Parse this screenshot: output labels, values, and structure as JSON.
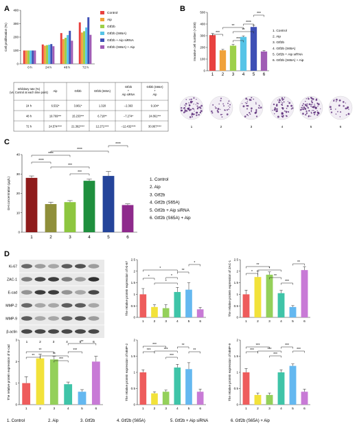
{
  "panel_letters": [
    "A",
    "B",
    "C",
    "D"
  ],
  "groups": [
    "Control",
    "Aip",
    "Gtf2b",
    "Gtf2b (S65A)",
    "Gtf2b + Aip siRNA",
    "Gtf2b (S65A) + Aip"
  ],
  "colors": [
    "#e8413f",
    "#f0a23a",
    "#9dd04a",
    "#56c4e7",
    "#3e4fb5",
    "#a05cb5"
  ],
  "panelA": {
    "ylabel": "Cell proliferation (%)",
    "x_cats": [
      "0 h",
      "24 h",
      "48 h",
      "72 h"
    ],
    "table": {
      "header": [
        "Inhibitory rate (%)",
        "Aip",
        "Gtf2b",
        "Gtf2b (S65A)",
        "Gtf2b + Aip siRNA",
        "Gtf2b (S65A) + Aip"
      ],
      "header_sub": "(vs. Control at each time point)",
      "rows": [
        [
          "24 h",
          "6.532*",
          "3.961*",
          "1.320",
          "−2.363",
          "9.104*"
        ],
        [
          "48 h",
          "19.769***",
          "15.233***",
          "6.718**",
          "−7.274*",
          "24.861***"
        ],
        [
          "72 h",
          "24.574****",
          "21.362****",
          "12.271****",
          "−12.432****",
          "30.067****"
        ]
      ]
    }
  },
  "panelB": {
    "ylabel": "Invasive cell number (×200)",
    "legend": [
      "1. Control",
      "2. Aip",
      "3. Gtf2b",
      "4. Gtf2b (S65A)",
      "5. Gtf2b + Aip siRNA",
      "6. Gtf2b (S65A) + Aip"
    ],
    "sig": [
      "***",
      "**",
      "***",
      "**",
      "****",
      "***"
    ]
  },
  "panelC": {
    "ylabel": "GH concentration (μg/L)",
    "legend": [
      "1. Control",
      "2. Aip",
      "3. Gtf2b",
      "4. Gtf2b (S65A)",
      "5. Gtf2b + Aip siRNA",
      "6. Gtf2b (S65A) + Aip"
    ],
    "sig": [
      "****",
      "****",
      "***",
      "***",
      "****",
      "****"
    ]
  },
  "panelD": {
    "blot_labels": [
      "Ki-67",
      "ZAC-1",
      "E-cad",
      "MMP-2",
      "MMP-9",
      "β-actin"
    ],
    "lanes": [
      "1",
      "2",
      "3",
      "4",
      "5",
      "6"
    ],
    "footer": [
      "1. Control",
      "2. Aip",
      "3. Gtf2b",
      "4. Gtf2b (S65A)",
      "5. Gtf2b + Aip siRNA",
      "6. Gtf2b (S65A) + Aip"
    ],
    "ylabels": {
      "ki67": "The relative protein expression of Ki-67",
      "zac1": "The relative protein expression of ZAC-1",
      "ecad": "The relative protein expression of E-cad",
      "mmp2": "The relative protein expression of MMP-2",
      "mmp9": "The relative protein expression of MMP-9"
    }
  },
  "chart_data": [
    {
      "panel": "A",
      "type": "bar",
      "categories": [
        "0 h",
        "24 h",
        "48 h",
        "72 h"
      ],
      "ylabel": "Cell proliferation (%)",
      "ylim": [
        0,
        400
      ],
      "yticks": [
        0,
        100,
        200,
        300,
        400
      ],
      "series": [
        {
          "name": "Control",
          "values": [
            100,
            145,
            230,
            310
          ]
        },
        {
          "name": "Aip",
          "values": [
            100,
            136,
            185,
            234
          ]
        },
        {
          "name": "Gtf2b",
          "values": [
            100,
            140,
            195,
            244
          ]
        },
        {
          "name": "Gtf2b (S65A)",
          "values": [
            100,
            143,
            215,
            272
          ]
        },
        {
          "name": "Gtf2b + Aip siRNA",
          "values": [
            100,
            148,
            247,
            348
          ]
        },
        {
          "name": "Gtf2b (S65A) + Aip",
          "values": [
            100,
            132,
            173,
            217
          ]
        }
      ]
    },
    {
      "panel": "B",
      "type": "bar",
      "categories": [
        "1",
        "2",
        "3",
        "4",
        "5",
        "6"
      ],
      "ylabel": "Invasive cell number (×200)",
      "ylim": [
        0,
        500
      ],
      "yticks": [
        0,
        100,
        200,
        300,
        400,
        500
      ],
      "values": [
        305,
        175,
        215,
        290,
        375,
        165
      ],
      "errors": [
        14,
        8,
        10,
        9,
        14,
        8
      ]
    },
    {
      "panel": "C",
      "type": "bar",
      "categories": [
        "1",
        "2",
        "3",
        "4",
        "5",
        "6"
      ],
      "ylabel": "GH concentration (μg/L)",
      "ylim": [
        0,
        40
      ],
      "yticks": [
        0,
        10,
        20,
        30,
        40
      ],
      "values": [
        28,
        14.5,
        15.5,
        26.5,
        29,
        14
      ],
      "errors": [
        1,
        1,
        0.8,
        0.8,
        2.3,
        0.6
      ]
    },
    {
      "panel": "D",
      "name": "Ki-67",
      "type": "bar",
      "categories": [
        "1",
        "2",
        "3",
        "4",
        "5",
        "6"
      ],
      "ylabel": "The relative protein expression of Ki-67",
      "ylim": [
        0,
        2.5
      ],
      "yticks": [
        0,
        0.5,
        1,
        1.5,
        2,
        2.5
      ],
      "values": [
        1.0,
        0.45,
        0.4,
        1.1,
        1.2,
        0.35
      ],
      "errors": [
        0.25,
        0.1,
        0.15,
        0.2,
        0.3,
        0.08
      ]
    },
    {
      "panel": "D",
      "name": "ZAC-1",
      "type": "bar",
      "categories": [
        "1",
        "2",
        "3",
        "4",
        "5",
        "6"
      ],
      "ylabel": "The relative protein expression of ZAC-1",
      "ylim": [
        0,
        2.5
      ],
      "yticks": [
        0,
        0.5,
        1,
        1.5,
        2,
        2.5
      ],
      "values": [
        1.0,
        1.75,
        1.85,
        1.05,
        0.45,
        2.05
      ],
      "errors": [
        0.18,
        0.25,
        0.12,
        0.12,
        0.06,
        0.15
      ]
    },
    {
      "panel": "D",
      "name": "E-cad",
      "type": "bar",
      "categories": [
        "1",
        "2",
        "3",
        "4",
        "5",
        "6"
      ],
      "ylabel": "The relative protein expression of E-cad",
      "ylim": [
        0,
        3
      ],
      "yticks": [
        0,
        1,
        2,
        3
      ],
      "values": [
        1.0,
        2.15,
        2.1,
        0.95,
        0.6,
        2.0
      ],
      "errors": [
        0.3,
        0.2,
        0.15,
        0.1,
        0.1,
        0.25
      ]
    },
    {
      "panel": "D",
      "name": "MMP-2",
      "type": "bar",
      "categories": [
        "1",
        "2",
        "3",
        "4",
        "5",
        "6"
      ],
      "ylabel": "The relative protein expression of MMP-2",
      "ylim": [
        0,
        2
      ],
      "yticks": [
        0,
        0.5,
        1,
        1.5,
        2
      ],
      "values": [
        1.0,
        0.35,
        0.4,
        1.15,
        1.1,
        0.4
      ],
      "errors": [
        0.08,
        0.05,
        0.05,
        0.1,
        0.2,
        0.08
      ]
    },
    {
      "panel": "D",
      "name": "MMP-9",
      "type": "bar",
      "categories": [
        "1",
        "2",
        "3",
        "4",
        "5",
        "6"
      ],
      "ylabel": "The relative protein expression of MMP-9",
      "ylim": [
        0,
        2
      ],
      "yticks": [
        0,
        0.5,
        1,
        1.5,
        2
      ],
      "values": [
        1.0,
        0.3,
        0.3,
        1.0,
        1.2,
        0.4
      ],
      "errors": [
        0.12,
        0.06,
        0.06,
        0.08,
        0.06,
        0.08
      ]
    }
  ]
}
